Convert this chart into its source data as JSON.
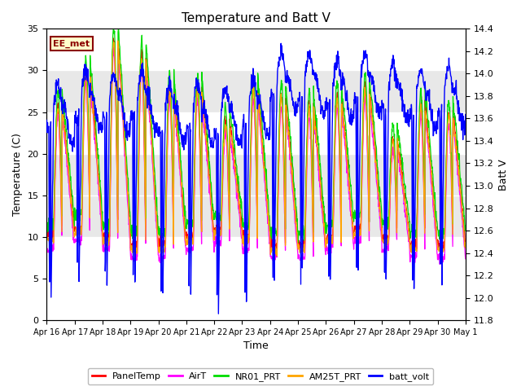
{
  "title": "Temperature and Batt V",
  "xlabel": "Time",
  "ylabel_left": "Temperature (C)",
  "ylabel_right": "Batt V",
  "ylim_left": [
    0,
    35
  ],
  "ylim_right": [
    11.8,
    14.4
  ],
  "xtick_labels": [
    "Apr 16",
    "Apr 17",
    "Apr 18",
    "Apr 19",
    "Apr 20",
    "Apr 21",
    "Apr 22",
    "Apr 23",
    "Apr 24",
    "Apr 25",
    "Apr 26",
    "Apr 27",
    "Apr 28",
    "Apr 29",
    "Apr 30",
    "May 1"
  ],
  "annotation_text": "EE_met",
  "annotation_fg": "#8B0000",
  "annotation_bg": "#FFFFCC",
  "legend_entries": [
    "PanelTemp",
    "AirT",
    "NR01_PRT",
    "AM25T_PRT",
    "batt_volt"
  ],
  "line_colors": [
    "#FF0000",
    "#FF00FF",
    "#00DD00",
    "#FFA500",
    "#0000FF"
  ],
  "fig_bg": "#FFFFFF",
  "plot_bg": "#FFFFFF",
  "band_color": "#E8E8E8",
  "band_ranges": [
    [
      10,
      20
    ],
    [
      25,
      30
    ]
  ],
  "n_days": 15,
  "pts_per_day": 96
}
